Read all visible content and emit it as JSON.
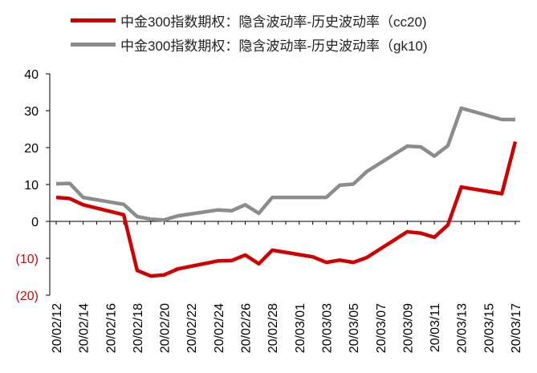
{
  "chart_data": {
    "type": "line",
    "title": "",
    "xlabel": "",
    "ylabel": "",
    "ylim": [
      -20,
      40
    ],
    "yticks": [
      40,
      30,
      20,
      10,
      0,
      -10,
      -20
    ],
    "ytick_labels": [
      "40",
      "30",
      "20",
      "10",
      "0",
      "(10)",
      "(20)"
    ],
    "negative_label_color": "#e00000",
    "x": [
      "20/02/12",
      "20/02/13",
      "20/02/14",
      "20/02/17",
      "20/02/18",
      "20/02/19",
      "20/02/20",
      "20/02/21",
      "20/02/24",
      "20/02/25",
      "20/02/26",
      "20/02/27",
      "20/02/28",
      "20/03/02",
      "20/03/03",
      "20/03/04",
      "20/03/05",
      "20/03/06",
      "20/03/09",
      "20/03/10",
      "20/03/11",
      "20/03/12",
      "20/03/13",
      "20/03/16",
      "20/03/17"
    ],
    "xtick_labels": [
      "20/02/12",
      "20/02/14",
      "20/02/16",
      "20/02/18",
      "20/02/20",
      "20/02/22",
      "20/02/24",
      "20/02/26",
      "20/02/28",
      "20/03/01",
      "20/03/03",
      "20/03/05",
      "20/03/07",
      "20/03/09",
      "20/03/11",
      "20/03/13",
      "20/03/15",
      "20/03/17"
    ],
    "series": [
      {
        "name": "中金300指数期权：隐含波动率-历史波动率（cc20)",
        "color": "#d00000",
        "values": [
          {
            "x": "20/02/12",
            "y": 6.5
          },
          {
            "x": "20/02/13",
            "y": 6.2
          },
          {
            "x": "20/02/14",
            "y": 4.5
          },
          {
            "x": "20/02/17",
            "y": 1.8
          },
          {
            "x": "20/02/18",
            "y": -13.3
          },
          {
            "x": "20/02/19",
            "y": -14.8
          },
          {
            "x": "20/02/20",
            "y": -14.5
          },
          {
            "x": "20/02/21",
            "y": -12.9
          },
          {
            "x": "20/02/24",
            "y": -10.7
          },
          {
            "x": "20/02/25",
            "y": -10.6
          },
          {
            "x": "20/02/26",
            "y": -9.1
          },
          {
            "x": "20/02/27",
            "y": -11.5
          },
          {
            "x": "20/02/28",
            "y": -7.8
          },
          {
            "x": "20/03/02",
            "y": -9.6
          },
          {
            "x": "20/03/03",
            "y": -11.1
          },
          {
            "x": "20/03/04",
            "y": -10.5
          },
          {
            "x": "20/03/05",
            "y": -11.1
          },
          {
            "x": "20/03/06",
            "y": -9.8
          },
          {
            "x": "20/03/09",
            "y": -2.8
          },
          {
            "x": "20/03/10",
            "y": -3.2
          },
          {
            "x": "20/03/11",
            "y": -4.3
          },
          {
            "x": "20/03/12",
            "y": -1.0
          },
          {
            "x": "20/03/13",
            "y": 9.3
          },
          {
            "x": "20/03/16",
            "y": 7.5
          },
          {
            "x": "20/03/17",
            "y": 21.6
          }
        ]
      },
      {
        "name": "中金300指数期权：隐含波动率-历史波动率（gk10)",
        "color": "#8c8c8c",
        "values": [
          {
            "x": "20/02/12",
            "y": 10.2
          },
          {
            "x": "20/02/13",
            "y": 10.3
          },
          {
            "x": "20/02/14",
            "y": 6.5
          },
          {
            "x": "20/02/17",
            "y": 4.6
          },
          {
            "x": "20/02/18",
            "y": 1.3
          },
          {
            "x": "20/02/19",
            "y": 0.6
          },
          {
            "x": "20/02/20",
            "y": 0.4
          },
          {
            "x": "20/02/21",
            "y": 1.5
          },
          {
            "x": "20/02/24",
            "y": 3.1
          },
          {
            "x": "20/02/25",
            "y": 2.9
          },
          {
            "x": "20/02/26",
            "y": 4.5
          },
          {
            "x": "20/02/27",
            "y": 2.2
          },
          {
            "x": "20/02/28",
            "y": 6.5
          },
          {
            "x": "20/03/02",
            "y": 6.5
          },
          {
            "x": "20/03/03",
            "y": 6.5
          },
          {
            "x": "20/03/04",
            "y": 9.8
          },
          {
            "x": "20/03/05",
            "y": 10.1
          },
          {
            "x": "20/03/06",
            "y": 13.5
          },
          {
            "x": "20/03/09",
            "y": 20.4
          },
          {
            "x": "20/03/10",
            "y": 20.2
          },
          {
            "x": "20/03/11",
            "y": 17.7
          },
          {
            "x": "20/03/12",
            "y": 20.5
          },
          {
            "x": "20/03/13",
            "y": 30.7
          },
          {
            "x": "20/03/16",
            "y": 27.6
          },
          {
            "x": "20/03/17",
            "y": 27.6
          }
        ]
      }
    ],
    "grid": false,
    "legend_position": "top"
  }
}
